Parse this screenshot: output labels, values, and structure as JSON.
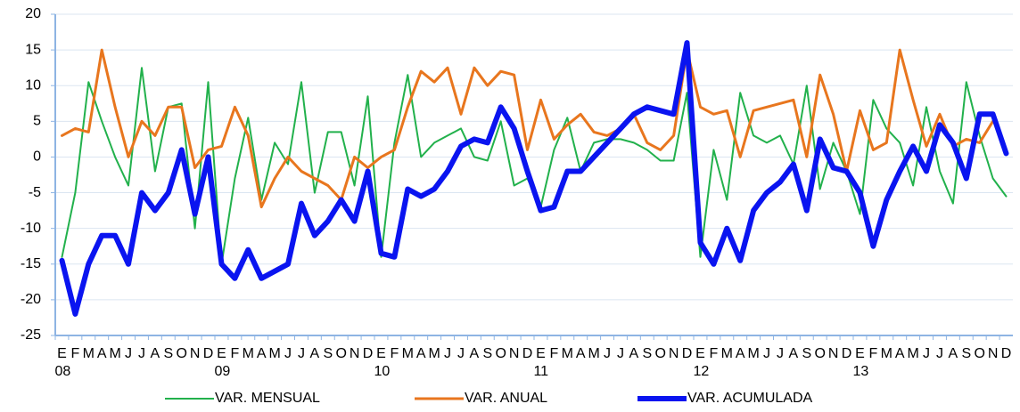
{
  "chart_data": {
    "type": "line",
    "categories": [
      "E",
      "F",
      "M",
      "A",
      "M",
      "J",
      "J",
      "A",
      "S",
      "O",
      "N",
      "D",
      "E",
      "F",
      "M",
      "A",
      "M",
      "J",
      "J",
      "A",
      "S",
      "O",
      "N",
      "D",
      "E",
      "F",
      "M",
      "A",
      "M",
      "J",
      "J",
      "A",
      "S",
      "O",
      "N",
      "D",
      "E",
      "F",
      "M",
      "A",
      "M",
      "J",
      "J",
      "A",
      "S",
      "O",
      "N",
      "D",
      "E",
      "F",
      "M",
      "A",
      "M",
      "J",
      "J",
      "A",
      "S",
      "O",
      "N",
      "D",
      "E",
      "F",
      "M",
      "A",
      "M",
      "J",
      "J",
      "A",
      "S",
      "O",
      "N",
      "D"
    ],
    "years": [
      "08",
      "09",
      "10",
      "11",
      "12",
      "13"
    ],
    "series": [
      {
        "name": "VAR. MENSUAL",
        "color": "#22b14c",
        "width": 2,
        "values": [
          -14,
          -5,
          10.5,
          5,
          0,
          -4,
          12.5,
          -2,
          7,
          7.5,
          -10,
          10.5,
          -15,
          -3,
          5.5,
          -6,
          2,
          -1,
          10.5,
          -5,
          3.5,
          3.5,
          -4,
          8.5,
          -14,
          2,
          11.5,
          0,
          2,
          3,
          4,
          0,
          -0.5,
          5,
          -4,
          -3,
          -7,
          1,
          5.5,
          -2,
          2,
          2.5,
          2.5,
          2,
          1,
          -0.5,
          -0.5,
          9,
          -14,
          1,
          -6,
          9,
          3,
          2,
          3,
          -1,
          10,
          -4.5,
          2,
          -2,
          -8,
          8,
          4,
          2,
          -4,
          7,
          -2,
          -6.5,
          10.5,
          3,
          -3,
          -5.5
        ]
      },
      {
        "name": "VAR. ANUAL",
        "color": "#e8761e",
        "width": 3,
        "values": [
          3,
          4,
          3.5,
          15,
          7,
          0,
          5,
          3,
          7,
          7,
          -1.5,
          1,
          1.5,
          7,
          3,
          -7,
          -3,
          0,
          -2,
          -3,
          -4,
          -6,
          0,
          -1.5,
          0,
          1,
          7,
          12,
          10.5,
          12.5,
          6,
          12.5,
          10,
          12,
          11.5,
          1,
          8,
          2.5,
          4.5,
          6,
          3.5,
          3,
          4,
          6,
          2,
          1,
          3,
          15,
          7,
          6,
          6.5,
          0,
          6.5,
          7,
          7.5,
          8,
          0,
          11.5,
          6,
          -2,
          6.5,
          1,
          2,
          15,
          8,
          1.5,
          6,
          1.5,
          2.5,
          2,
          5,
          null
        ]
      },
      {
        "name": "VAR. ACUMULADA",
        "color": "#0a14f0",
        "width": 6,
        "values": [
          -14.5,
          -22,
          -15,
          -11,
          -11,
          -15,
          -5,
          -7.5,
          -5,
          1,
          -8,
          0,
          -15,
          -17,
          -13,
          -17,
          -16,
          -15,
          -6.5,
          -11,
          -9,
          -6,
          -9,
          -2,
          -13.5,
          -14,
          -4.5,
          -5.5,
          -4.5,
          -2,
          1.5,
          2.5,
          2,
          7,
          4,
          -2,
          -7.5,
          -7,
          -2,
          -2,
          0,
          2,
          4,
          6,
          7,
          6.5,
          6,
          16,
          -12,
          -15,
          -10,
          -14.5,
          -7.5,
          -5,
          -3.5,
          -1,
          -7.5,
          2.5,
          -1.5,
          -2,
          -5,
          -12.5,
          -6,
          -2,
          1.5,
          -2,
          4.5,
          2,
          -3,
          6,
          6,
          0.5
        ]
      }
    ],
    "ylim": [
      -25,
      20
    ],
    "yticks": [
      -25,
      -20,
      -15,
      -10,
      -5,
      0,
      5,
      10,
      15,
      20
    ],
    "grid": true
  }
}
